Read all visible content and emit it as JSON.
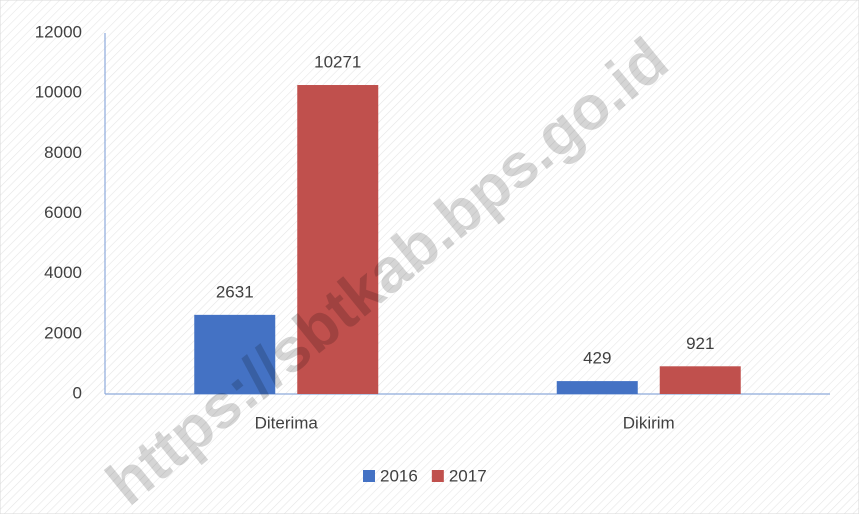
{
  "chart_data": {
    "type": "bar",
    "categories": [
      "Diterima",
      "Dikirim"
    ],
    "series": [
      {
        "name": "2016",
        "color": "#4472c4",
        "values": [
          2631,
          429
        ]
      },
      {
        "name": "2017",
        "color": "#c0504d",
        "values": [
          10271,
          921
        ]
      }
    ],
    "ylim": [
      0,
      12000
    ],
    "yticks": [
      0,
      2000,
      4000,
      6000,
      8000,
      10000,
      12000
    ],
    "grid": false,
    "legend": "bottom",
    "watermark": "https://sbtkab.bps.go.id"
  }
}
